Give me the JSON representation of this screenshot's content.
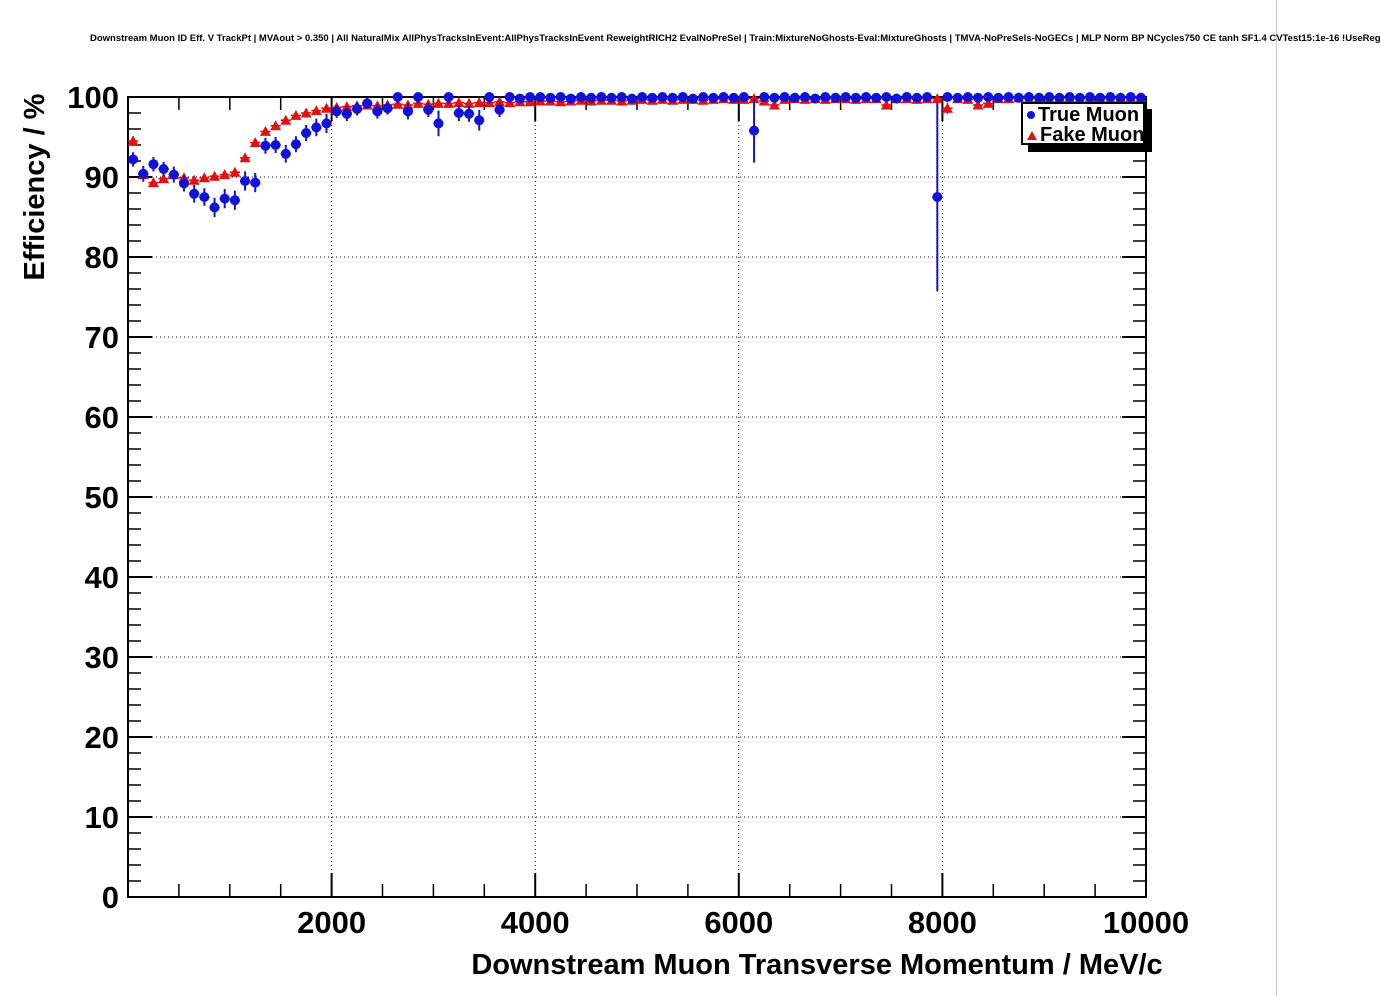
{
  "header": {
    "title": "Downstream Muon ID Eff. V TrackPt | MVAout > 0.350 | All NaturalMix AllPhysTracksInEvent:AllPhysTracksInEvent ReweightRICH2 EvalNoPreSel | Train:MixtureNoGhosts-Eval:MixtureGhosts | TMVA-NoPreSels-NoGECs | MLP Norm BP NCycles750 CE tanh SF1.4 CVTest15:1e-16 !UseReg"
  },
  "legend": {
    "items": [
      {
        "label": "True Muon",
        "marker": "circle",
        "color": "#1212d6"
      },
      {
        "label": "Fake Muon",
        "marker": "triangle",
        "color": "#e41111"
      }
    ]
  },
  "chart_data": {
    "type": "scatter",
    "title": "Downstream Muon ID Eff. V TrackPt | MVAout > 0.350 | All NaturalMix AllPhysTracksInEvent:AllPhysTracksInEvent ReweightRICH2 EvalNoPreSel | Train:MixtureNoGhosts-Eval:MixtureGhosts | TMVA-NoPreSels-NoGECs | MLP Norm BP NCycles750 CE tanh SF1.4 CVTest15:1e-16 !UseReg",
    "xlabel": "Downstream Muon Transverse Momentum / MeV/c",
    "ylabel": "Efficiency / %",
    "xlim": [
      0,
      10000
    ],
    "ylim": [
      0,
      100
    ],
    "x_major_ticks": [
      2000,
      4000,
      6000,
      8000,
      10000
    ],
    "x_minor_step": 500,
    "y_major_ticks": [
      0,
      10,
      20,
      30,
      40,
      50,
      60,
      70,
      80,
      90,
      100
    ],
    "y_minor_step": 2,
    "grid": "dotted lines at major divisions",
    "legend_position": "top-right",
    "series": [
      {
        "name": "Fake Muon",
        "marker": "triangle",
        "color": "#e41111",
        "points": [
          [
            50,
            94.5,
            0.6
          ],
          [
            150,
            90.3,
            0.5
          ],
          [
            250,
            89.3,
            0.4
          ],
          [
            350,
            89.8,
            0.4
          ],
          [
            450,
            90.3,
            0.4
          ],
          [
            550,
            89.9,
            0.4
          ],
          [
            650,
            89.6,
            0.4
          ],
          [
            750,
            89.9,
            0.4
          ],
          [
            850,
            90.1,
            0.4
          ],
          [
            950,
            90.3,
            0.4
          ],
          [
            1050,
            90.6,
            0.4
          ],
          [
            1150,
            92.4,
            0.4
          ],
          [
            1250,
            94.3,
            0.3
          ],
          [
            1350,
            95.7,
            0.3
          ],
          [
            1450,
            96.4,
            0.3
          ],
          [
            1550,
            97.1,
            0.3
          ],
          [
            1650,
            97.7,
            0.3
          ],
          [
            1750,
            98.0,
            0.2
          ],
          [
            1850,
            98.3,
            0.2
          ],
          [
            1950,
            98.6,
            0.2
          ],
          [
            2050,
            98.7,
            0.2
          ],
          [
            2150,
            98.8,
            0.2
          ],
          [
            2250,
            98.9,
            0.2
          ],
          [
            2350,
            99.0,
            0.2
          ],
          [
            2450,
            98.9,
            0.2
          ],
          [
            2550,
            99.0,
            0.2
          ],
          [
            2650,
            99.1,
            0.2
          ],
          [
            2750,
            99.0,
            0.2
          ],
          [
            2850,
            99.2,
            0.2
          ],
          [
            2950,
            99.1,
            0.2
          ],
          [
            3050,
            99.2,
            0.2
          ],
          [
            3150,
            99.2,
            0.2
          ],
          [
            3250,
            99.3,
            0.2
          ],
          [
            3350,
            99.2,
            0.2
          ],
          [
            3450,
            99.3,
            0.2
          ],
          [
            3550,
            99.3,
            0.2
          ],
          [
            3650,
            99.4,
            0.2
          ],
          [
            3750,
            99.3,
            0.2
          ],
          [
            3850,
            99.4,
            0.1
          ],
          [
            3950,
            99.4,
            0.1
          ],
          [
            4050,
            99.5,
            0.1
          ],
          [
            4150,
            99.5,
            0.1
          ],
          [
            4250,
            99.4,
            0.1
          ],
          [
            4350,
            99.5,
            0.1
          ],
          [
            4450,
            99.6,
            0.1
          ],
          [
            4550,
            99.5,
            0.1
          ],
          [
            4650,
            99.6,
            0.1
          ],
          [
            4750,
            99.6,
            0.1
          ],
          [
            4850,
            99.5,
            0.1
          ],
          [
            4950,
            99.6,
            0.1
          ],
          [
            5050,
            99.7,
            0.1
          ],
          [
            5150,
            99.6,
            0.1
          ],
          [
            5250,
            99.7,
            0.1
          ],
          [
            5350,
            99.6,
            0.1
          ],
          [
            5450,
            99.7,
            0.1
          ],
          [
            5550,
            99.7,
            0.1
          ],
          [
            5650,
            99.6,
            0.1
          ],
          [
            5750,
            99.7,
            0.1
          ],
          [
            5850,
            99.8,
            0.1
          ],
          [
            5950,
            99.7,
            0.1
          ],
          [
            6050,
            99.7,
            0.1
          ],
          [
            6150,
            99.8,
            0.1
          ],
          [
            6250,
            99.5,
            0.2
          ],
          [
            6350,
            99.0,
            0.3
          ],
          [
            6450,
            99.7,
            0.1
          ],
          [
            6550,
            99.8,
            0.1
          ],
          [
            6650,
            99.7,
            0.1
          ],
          [
            6750,
            99.8,
            0.1
          ],
          [
            6850,
            99.7,
            0.1
          ],
          [
            6950,
            99.8,
            0.1
          ],
          [
            7050,
            99.8,
            0.1
          ],
          [
            7150,
            99.7,
            0.1
          ],
          [
            7250,
            99.8,
            0.1
          ],
          [
            7350,
            99.8,
            0.1
          ],
          [
            7450,
            99.0,
            0.3
          ],
          [
            7550,
            99.8,
            0.1
          ],
          [
            7650,
            99.8,
            0.1
          ],
          [
            7750,
            99.7,
            0.1
          ],
          [
            7850,
            99.8,
            0.1
          ],
          [
            7950,
            99.8,
            0.1
          ],
          [
            8050,
            98.6,
            0.7
          ],
          [
            8150,
            99.8,
            0.1
          ],
          [
            8250,
            99.7,
            0.1
          ],
          [
            8350,
            99.0,
            0.3
          ],
          [
            8450,
            99.2,
            0.3
          ],
          [
            8550,
            99.8,
            0.1
          ],
          [
            8650,
            99.8,
            0.1
          ],
          [
            8750,
            99.9,
            0.1
          ],
          [
            8850,
            99.8,
            0.1
          ],
          [
            8950,
            99.9,
            0.1
          ],
          [
            9050,
            99.8,
            0.1
          ],
          [
            9150,
            99.9,
            0.1
          ],
          [
            9250,
            99.9,
            0.1
          ],
          [
            9350,
            99.8,
            0.1
          ],
          [
            9450,
            99.9,
            0.1
          ],
          [
            9550,
            99.9,
            0.1
          ],
          [
            9650,
            99.8,
            0.1
          ],
          [
            9750,
            99.9,
            0.1
          ],
          [
            9850,
            99.9,
            0.1
          ],
          [
            9950,
            99.9,
            0.1
          ]
        ]
      },
      {
        "name": "True Muon",
        "marker": "circle",
        "color": "#1212d6",
        "points": [
          [
            50,
            92.2,
            0.9
          ],
          [
            150,
            90.4,
            1.0
          ],
          [
            250,
            91.6,
            0.9
          ],
          [
            350,
            91.0,
            0.9
          ],
          [
            450,
            90.3,
            1.0
          ],
          [
            550,
            89.2,
            1.0
          ],
          [
            650,
            87.9,
            1.1
          ],
          [
            750,
            87.5,
            1.1
          ],
          [
            850,
            86.2,
            1.2
          ],
          [
            950,
            87.3,
            1.2
          ],
          [
            1050,
            87.1,
            1.2
          ],
          [
            1150,
            89.5,
            1.2
          ],
          [
            1250,
            89.3,
            1.2
          ],
          [
            1350,
            93.9,
            1.0
          ],
          [
            1450,
            94.0,
            1.0
          ],
          [
            1550,
            92.9,
            1.1
          ],
          [
            1650,
            94.1,
            1.0
          ],
          [
            1750,
            95.5,
            1.0
          ],
          [
            1850,
            96.2,
            1.1
          ],
          [
            1950,
            96.7,
            1.2
          ],
          [
            2050,
            98.2,
            0.8
          ],
          [
            2150,
            97.9,
            0.9
          ],
          [
            2250,
            98.5,
            0.8
          ],
          [
            2350,
            99.2,
            0.7
          ],
          [
            2450,
            98.2,
            0.9
          ],
          [
            2550,
            98.6,
            0.8
          ],
          [
            2650,
            100,
            0.8
          ],
          [
            2750,
            98.2,
            1.0
          ],
          [
            2850,
            100,
            0.8
          ],
          [
            2950,
            98.4,
            0.9
          ],
          [
            3050,
            96.7,
            1.6
          ],
          [
            3150,
            100,
            0.8
          ],
          [
            3250,
            98.0,
            1.0
          ],
          [
            3350,
            97.9,
            1.0
          ],
          [
            3450,
            97.1,
            1.3
          ],
          [
            3550,
            100,
            0.8
          ],
          [
            3650,
            98.4,
            0.9
          ],
          [
            3750,
            100,
            0.7
          ],
          [
            3850,
            99.8,
            0.5
          ],
          [
            3950,
            100,
            0.5
          ],
          [
            4050,
            100,
            0.4
          ],
          [
            4150,
            99.9,
            0.3
          ],
          [
            4250,
            100,
            0.3
          ],
          [
            4350,
            99.8,
            0.4
          ],
          [
            4450,
            100,
            0.3
          ],
          [
            4550,
            99.9,
            0.3
          ],
          [
            4650,
            100,
            0.3
          ],
          [
            4750,
            99.9,
            0.3
          ],
          [
            4850,
            100,
            0.2
          ],
          [
            4950,
            99.8,
            0.3
          ],
          [
            5050,
            100,
            0.2
          ],
          [
            5150,
            99.9,
            0.3
          ],
          [
            5250,
            100,
            0.2
          ],
          [
            5350,
            99.9,
            0.2
          ],
          [
            5450,
            100,
            0.2
          ],
          [
            5550,
            99.8,
            0.3
          ],
          [
            5650,
            100,
            0.2
          ],
          [
            5750,
            99.9,
            0.2
          ],
          [
            5850,
            100,
            0.2
          ],
          [
            5950,
            99.9,
            0.2
          ],
          [
            6050,
            100,
            0.2
          ],
          [
            6150,
            95.8,
            4.0
          ],
          [
            6250,
            100,
            0.2
          ],
          [
            6350,
            99.9,
            0.2
          ],
          [
            6450,
            100,
            0.2
          ],
          [
            6550,
            99.9,
            0.2
          ],
          [
            6650,
            100,
            0.2
          ],
          [
            6750,
            99.8,
            0.3
          ],
          [
            6850,
            100,
            0.2
          ],
          [
            6950,
            99.9,
            0.2
          ],
          [
            7050,
            100,
            0.2
          ],
          [
            7150,
            99.9,
            0.2
          ],
          [
            7250,
            100,
            0.2
          ],
          [
            7350,
            99.9,
            0.2
          ],
          [
            7450,
            100,
            0.2
          ],
          [
            7550,
            99.8,
            0.3
          ],
          [
            7650,
            100,
            0.2
          ],
          [
            7750,
            99.9,
            0.2
          ],
          [
            7850,
            100,
            0.2
          ],
          [
            7950,
            87.5,
            11.8
          ],
          [
            8050,
            100,
            0.2
          ],
          [
            8150,
            99.9,
            0.2
          ],
          [
            8250,
            100,
            0.2
          ],
          [
            8350,
            99.9,
            0.2
          ],
          [
            8450,
            100,
            0.2
          ],
          [
            8550,
            99.9,
            0.2
          ],
          [
            8650,
            100,
            0.2
          ],
          [
            8750,
            99.9,
            0.2
          ],
          [
            8850,
            100,
            0.2
          ],
          [
            8950,
            99.9,
            0.2
          ],
          [
            9050,
            100,
            0.2
          ],
          [
            9150,
            99.9,
            0.2
          ],
          [
            9250,
            100,
            0.2
          ],
          [
            9350,
            99.9,
            0.2
          ],
          [
            9450,
            100,
            0.2
          ],
          [
            9550,
            99.9,
            0.2
          ],
          [
            9650,
            100,
            0.2
          ],
          [
            9750,
            99.9,
            0.2
          ],
          [
            9850,
            100,
            0.2
          ],
          [
            9950,
            99.9,
            0.2
          ]
        ]
      }
    ]
  }
}
